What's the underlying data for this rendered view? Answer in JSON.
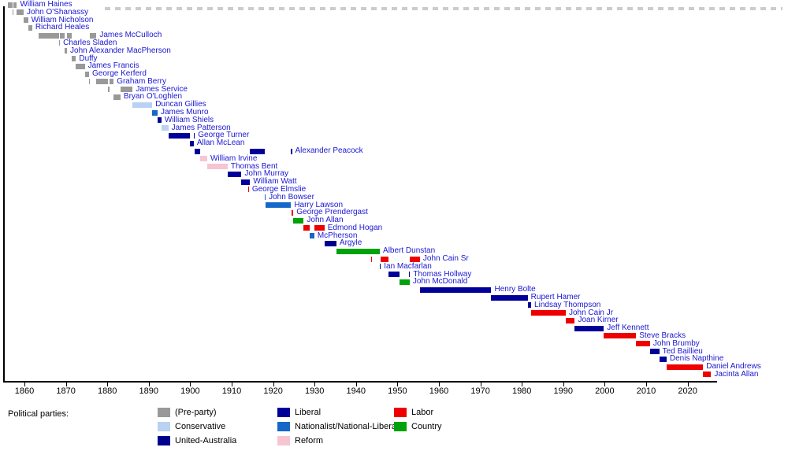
{
  "colors": {
    "name_label_text": "#1a17d0",
    "axis": "#000000",
    "top_dashes": "#cccccc",
    "background": "#ffffff"
  },
  "legend": {
    "title": "Political parties:",
    "columns": [
      [
        "preparty",
        "conservative",
        "united_australia"
      ],
      [
        "liberal",
        "nationalist",
        "reform"
      ],
      [
        "labor",
        "country"
      ]
    ]
  },
  "chart_data": {
    "type": "bar",
    "variant": "horizontal-timeline-gantt",
    "title": "",
    "xlabel": "",
    "ylabel": "",
    "x_range": [
      1855,
      2027
    ],
    "grid": false,
    "legend_position": "bottom",
    "x_axis": {
      "ticks": [
        1860,
        1870,
        1880,
        1890,
        1900,
        1910,
        1920,
        1930,
        1940,
        1950,
        1960,
        1970,
        1980,
        1990,
        2000,
        2010,
        2020
      ]
    },
    "parties": {
      "preparty": {
        "label": "(Pre-party)",
        "color": "#999999"
      },
      "conservative": {
        "label": "Conservative",
        "color": "#b9d1f2"
      },
      "united_australia": {
        "label": "United-Australia",
        "color": "#00008f"
      },
      "liberal": {
        "label": "Liberal",
        "color": "#000099"
      },
      "nationalist": {
        "label": "Nationalist/National-Liberal",
        "color": "#1568c8"
      },
      "reform": {
        "label": "Reform",
        "color": "#f7c5d1"
      },
      "labor": {
        "label": "Labor",
        "color": "#ee0000"
      },
      "country": {
        "label": "Country",
        "color": "#00a20b"
      }
    },
    "rows": [
      {
        "name": "William Haines",
        "party": "preparty",
        "terms": [
          [
            1855.92,
            1857.19
          ],
          [
            1857.33,
            1858.19
          ]
        ]
      },
      {
        "name": "John O'Shanassy",
        "party": "preparty",
        "terms": [
          [
            1857.19,
            1857.33
          ],
          [
            1858.19,
            1859.82
          ]
        ]
      },
      {
        "name": "William Nicholson",
        "party": "preparty",
        "terms": [
          [
            1859.82,
            1860.87
          ]
        ]
      },
      {
        "name": "Richard Heales",
        "party": "preparty",
        "terms": [
          [
            1860.87,
            1861.87
          ]
        ]
      },
      {
        "name": "James McCulloch",
        "party": "preparty",
        "terms": [
          [
            1863.48,
            1868.35
          ],
          [
            1868.52,
            1869.72
          ],
          [
            1870.27,
            1871.45
          ],
          [
            1875.8,
            1877.37
          ]
        ]
      },
      {
        "name": "Charles Sladen",
        "party": "preparty",
        "terms": [
          [
            1868.35,
            1868.52
          ]
        ]
      },
      {
        "name": "John Alexander MacPherson",
        "party": "preparty",
        "terms": [
          [
            1869.72,
            1870.27
          ]
        ]
      },
      {
        "name": "Duffy",
        "party": "preparty",
        "terms": [
          [
            1871.45,
            1872.43
          ]
        ]
      },
      {
        "name": "James Francis",
        "party": "preparty",
        "terms": [
          [
            1872.43,
            1874.56
          ]
        ]
      },
      {
        "name": "George Kerferd",
        "party": "preparty",
        "terms": [
          [
            1874.56,
            1875.59
          ]
        ]
      },
      {
        "name": "Graham Berry",
        "party": "preparty",
        "terms": [
          [
            1875.59,
            1875.8
          ],
          [
            1877.37,
            1880.17
          ],
          [
            1880.59,
            1881.52
          ]
        ]
      },
      {
        "name": "James Service",
        "party": "preparty",
        "terms": [
          [
            1880.17,
            1880.59
          ],
          [
            1883.18,
            1886.12
          ]
        ]
      },
      {
        "name": "Bryan O'Loghlen",
        "party": "preparty",
        "terms": [
          [
            1881.52,
            1883.18
          ]
        ]
      },
      {
        "name": "Duncan Gillies",
        "party": "conservative",
        "terms": [
          [
            1886.12,
            1890.84
          ]
        ]
      },
      {
        "name": "James Munro",
        "party": "nationalist",
        "terms": [
          [
            1890.84,
            1892.12
          ]
        ]
      },
      {
        "name": "William Shiels",
        "party": "liberal",
        "terms": [
          [
            1892.12,
            1893.06
          ]
        ]
      },
      {
        "name": "James Patterson",
        "party": "conservative",
        "terms": [
          [
            1893.06,
            1894.73
          ]
        ]
      },
      {
        "name": "George Turner",
        "party": "liberal",
        "terms": [
          [
            1894.73,
            1899.92
          ],
          [
            1900.84,
            1901.12
          ]
        ]
      },
      {
        "name": "Allan McLean",
        "party": "liberal",
        "terms": [
          [
            1899.92,
            1900.84
          ]
        ]
      },
      {
        "name": "Alexander Peacock",
        "party": "liberal",
        "terms": [
          [
            1901.12,
            1902.44
          ],
          [
            1914.44,
            1917.91
          ],
          [
            1924.32,
            1924.54
          ]
        ]
      },
      {
        "name": "William Irvine",
        "party": "reform",
        "terms": [
          [
            1902.44,
            1904.1
          ]
        ]
      },
      {
        "name": "Thomas Bent",
        "party": "reform",
        "terms": [
          [
            1904.1,
            1909.02
          ]
        ]
      },
      {
        "name": "John Murray",
        "party": "liberal",
        "terms": [
          [
            1909.02,
            1912.36
          ]
        ]
      },
      {
        "name": "William Watt",
        "party": "liberal",
        "terms": [
          [
            1912.36,
            1913.92
          ],
          [
            1913.98,
            1914.44
          ]
        ]
      },
      {
        "name": "George Elmslie",
        "party": "labor",
        "terms": [
          [
            1913.92,
            1913.98
          ]
        ]
      },
      {
        "name": "John Bowser",
        "party": "nationalist",
        "terms": [
          [
            1917.91,
            1918.2
          ]
        ]
      },
      {
        "name": "Harry Lawson",
        "party": "nationalist",
        "terms": [
          [
            1918.2,
            1924.32
          ]
        ]
      },
      {
        "name": "George Prendergast",
        "party": "labor",
        "terms": [
          [
            1924.54,
            1924.88
          ]
        ]
      },
      {
        "name": "John Allan",
        "party": "country",
        "terms": [
          [
            1924.88,
            1927.38
          ]
        ]
      },
      {
        "name": "Edmond Hogan",
        "party": "labor",
        "terms": [
          [
            1927.38,
            1928.9
          ],
          [
            1929.93,
            1932.38
          ]
        ]
      },
      {
        "name": "McPherson",
        "party": "nationalist",
        "terms": [
          [
            1928.9,
            1929.93
          ]
        ]
      },
      {
        "name": "Argyle",
        "party": "united_australia",
        "terms": [
          [
            1932.38,
            1935.27
          ]
        ]
      },
      {
        "name": "Albert Dunstan",
        "party": "country",
        "terms": [
          [
            1935.27,
            1943.7
          ],
          [
            1943.72,
            1945.75
          ]
        ]
      },
      {
        "name": "John Cain Sr",
        "party": "labor",
        "terms": [
          [
            1943.7,
            1943.72
          ],
          [
            1945.89,
            1947.9
          ],
          [
            1952.94,
            1955.42
          ]
        ]
      },
      {
        "name": "Ian Macfarlan",
        "party": "liberal",
        "terms": [
          [
            1945.75,
            1945.89
          ]
        ]
      },
      {
        "name": "Thomas Hollway",
        "party": "liberal",
        "terms": [
          [
            1947.9,
            1950.49
          ],
          [
            1952.82,
            1952.84
          ]
        ]
      },
      {
        "name": "John McDonald",
        "party": "country",
        "terms": [
          [
            1950.49,
            1952.94
          ]
        ]
      },
      {
        "name": "Henry Bolte",
        "party": "liberal",
        "terms": [
          [
            1955.42,
            1972.64
          ]
        ]
      },
      {
        "name": "Rupert Hamer",
        "party": "liberal",
        "terms": [
          [
            1972.64,
            1981.42
          ]
        ]
      },
      {
        "name": "Lindsay Thompson",
        "party": "liberal",
        "terms": [
          [
            1981.42,
            1982.25
          ]
        ]
      },
      {
        "name": "John Cain Jr",
        "party": "labor",
        "terms": [
          [
            1982.25,
            1990.6
          ]
        ]
      },
      {
        "name": "Joan Kirner",
        "party": "labor",
        "terms": [
          [
            1990.6,
            1992.79
          ]
        ]
      },
      {
        "name": "Jeff Kennett",
        "party": "liberal",
        "terms": [
          [
            1992.79,
            1999.79
          ]
        ]
      },
      {
        "name": "Steve Bracks",
        "party": "labor",
        "terms": [
          [
            1999.79,
            2007.57
          ]
        ]
      },
      {
        "name": "John Brumby",
        "party": "labor",
        "terms": [
          [
            2007.57,
            2010.93
          ]
        ]
      },
      {
        "name": "Ted Baillieu",
        "party": "liberal",
        "terms": [
          [
            2010.93,
            2013.17
          ]
        ]
      },
      {
        "name": "Denis Napthine",
        "party": "liberal",
        "terms": [
          [
            2013.17,
            2014.92
          ]
        ]
      },
      {
        "name": "Daniel Andrews",
        "party": "labor",
        "terms": [
          [
            2014.92,
            2023.73
          ]
        ]
      },
      {
        "name": "Jacinta Allan",
        "party": "labor",
        "terms": [
          [
            2023.73,
            2025.65
          ]
        ]
      }
    ]
  }
}
